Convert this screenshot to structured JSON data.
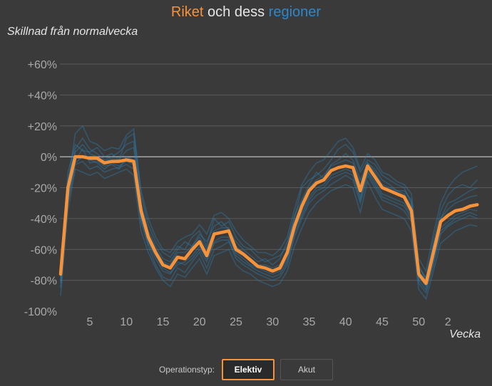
{
  "title": {
    "part1": "Riket",
    "part2": " och dess ",
    "part3": "regioner"
  },
  "chart_data": {
    "type": "line",
    "ylabel": "Skillnad från normalvecka",
    "xlabel": "Vecka",
    "x_ticks": [
      "5",
      "10",
      "15",
      "20",
      "25",
      "30",
      "35",
      "40",
      "45",
      "50",
      "2"
    ],
    "y_ticks": [
      "+60%",
      "+40%",
      "+20%",
      "0%",
      "-20%",
      "-40%",
      "-60%",
      "-80%",
      "-100%"
    ],
    "ylim": [
      -100,
      70
    ],
    "grid": true,
    "x_index_note": "x values are week positions counted from week 1 (index 53 = week 1 of next year)",
    "series": [
      {
        "name": "Riket",
        "x": [
          1,
          2,
          3,
          4,
          5,
          6,
          7,
          8,
          9,
          10,
          11,
          12,
          13,
          14,
          15,
          16,
          17,
          18,
          19,
          20,
          21,
          22,
          23,
          24,
          25,
          26,
          27,
          28,
          29,
          30,
          31,
          32,
          33,
          34,
          35,
          36,
          37,
          38,
          39,
          40,
          41,
          42,
          43,
          44,
          45,
          46,
          47,
          48,
          49,
          50,
          51,
          52,
          53,
          54,
          55,
          56,
          57,
          58
        ],
        "values": [
          -76,
          -20,
          0,
          0,
          -1,
          -1,
          -4,
          -3,
          -3,
          -2,
          -3,
          -35,
          -52,
          -62,
          -70,
          -72,
          -65,
          -66,
          -60,
          -55,
          -64,
          -50,
          -49,
          -48,
          -60,
          -63,
          -67,
          -71,
          -72,
          -74,
          -72,
          -62,
          -45,
          -32,
          -22,
          -17,
          -15,
          -9,
          -7,
          -6,
          -7,
          -22,
          -6,
          -13,
          -20,
          -22,
          -24,
          -26,
          -35,
          -76,
          -82,
          -62,
          -42,
          -38,
          -35,
          -34,
          -32,
          -31
        ]
      },
      {
        "name": "",
        "x": [
          1,
          2,
          3,
          4,
          5,
          6,
          7,
          8,
          9,
          10,
          11,
          12,
          13,
          14,
          15,
          16,
          17,
          18,
          19,
          20,
          21,
          22,
          23,
          24,
          25,
          26,
          27,
          28,
          29,
          30,
          31,
          32,
          33,
          34,
          35,
          36,
          37,
          38,
          39,
          40,
          41,
          42,
          43,
          44,
          45,
          46,
          47,
          48,
          49,
          50,
          51,
          52,
          53,
          54,
          55,
          56,
          57,
          58
        ],
        "values": [
          -80,
          -15,
          5,
          12,
          5,
          2,
          -2,
          0,
          3,
          8,
          10,
          -30,
          -48,
          -58,
          -66,
          -68,
          -60,
          -55,
          -58,
          -50,
          -55,
          -45,
          -42,
          -47,
          -55,
          -60,
          -64,
          -68,
          -66,
          -70,
          -66,
          -55,
          -40,
          -20,
          -15,
          -12,
          -8,
          -2,
          5,
          8,
          3,
          -10,
          -2,
          -5,
          -12,
          -15,
          -18,
          -20,
          -30,
          -70,
          -80,
          -55,
          -35,
          -25,
          -20,
          -18,
          -20,
          -15
        ]
      },
      {
        "name": "",
        "x": [
          1,
          2,
          3,
          4,
          5,
          6,
          7,
          8,
          9,
          10,
          11,
          12,
          13,
          14,
          15,
          16,
          17,
          18,
          19,
          20,
          21,
          22,
          23,
          24,
          25,
          26,
          27,
          28,
          29,
          30,
          31,
          32,
          33,
          34,
          35,
          36,
          37,
          38,
          39,
          40,
          41,
          42,
          43,
          44,
          45,
          46,
          47,
          48,
          49,
          50,
          51,
          52,
          53,
          54,
          55,
          56,
          57,
          58
        ],
        "values": [
          -85,
          -30,
          -5,
          -3,
          -8,
          -6,
          -10,
          -8,
          -7,
          -5,
          -8,
          -42,
          -58,
          -70,
          -78,
          -80,
          -72,
          -75,
          -68,
          -62,
          -72,
          -60,
          -58,
          -55,
          -66,
          -70,
          -73,
          -76,
          -78,
          -80,
          -78,
          -70,
          -52,
          -40,
          -30,
          -25,
          -22,
          -18,
          -15,
          -12,
          -15,
          -30,
          -12,
          -20,
          -28,
          -30,
          -32,
          -35,
          -42,
          -82,
          -88,
          -70,
          -50,
          -45,
          -42,
          -40,
          -38,
          -40
        ]
      },
      {
        "name": "",
        "x": [
          1,
          2,
          3,
          4,
          5,
          6,
          7,
          8,
          9,
          10,
          11,
          12,
          13,
          14,
          15,
          16,
          17,
          18,
          19,
          20,
          21,
          22,
          23,
          24,
          25,
          26,
          27,
          28,
          29,
          30,
          31,
          32,
          33,
          34,
          35,
          36,
          37,
          38,
          39,
          40,
          41,
          42,
          43,
          44,
          45,
          46,
          47,
          48,
          49,
          50,
          51,
          52,
          53,
          54,
          55,
          56,
          57,
          58
        ],
        "values": [
          -70,
          -10,
          8,
          4,
          3,
          6,
          0,
          2,
          -2,
          12,
          15,
          -25,
          -44,
          -55,
          -62,
          -65,
          -58,
          -60,
          -52,
          -48,
          -58,
          -40,
          -45,
          -42,
          -52,
          -58,
          -60,
          -65,
          -68,
          -66,
          -64,
          -58,
          -38,
          -28,
          -18,
          -10,
          -14,
          -5,
          -2,
          2,
          -2,
          -15,
          -4,
          -8,
          -15,
          -18,
          -22,
          -22,
          -28,
          -72,
          -78,
          -58,
          -40,
          -30,
          -28,
          -25,
          -22,
          -20
        ]
      },
      {
        "name": "",
        "x": [
          1,
          2,
          3,
          4,
          5,
          6,
          7,
          8,
          9,
          10,
          11,
          12,
          13,
          14,
          15,
          16,
          17,
          18,
          19,
          20,
          21,
          22,
          23,
          24,
          25,
          26,
          27,
          28,
          29,
          30,
          31,
          32,
          33,
          34,
          35,
          36,
          37,
          38,
          39,
          40,
          41,
          42,
          43,
          44,
          45,
          46,
          47,
          48,
          49,
          50,
          51,
          52,
          53,
          54,
          55,
          56,
          57,
          58
        ],
        "values": [
          -78,
          -25,
          -2,
          5,
          -4,
          -3,
          -6,
          -5,
          -8,
          0,
          -2,
          -38,
          -55,
          -64,
          -72,
          -75,
          -70,
          -68,
          -64,
          -58,
          -66,
          -55,
          -52,
          -52,
          -62,
          -66,
          -70,
          -72,
          -74,
          -76,
          -74,
          -66,
          -48,
          -36,
          -26,
          -20,
          -18,
          -12,
          -10,
          -8,
          -10,
          -26,
          -9,
          -16,
          -24,
          -26,
          -28,
          -30,
          -38,
          -78,
          -84,
          -66,
          -46,
          -42,
          -38,
          -36,
          -34,
          -35
        ]
      },
      {
        "name": "",
        "x": [
          1,
          2,
          3,
          4,
          5,
          6,
          7,
          8,
          9,
          10,
          11,
          12,
          13,
          14,
          15,
          16,
          17,
          18,
          19,
          20,
          21,
          22,
          23,
          24,
          25,
          26,
          27,
          28,
          29,
          30,
          31,
          32,
          33,
          34,
          35,
          36,
          37,
          38,
          39,
          40,
          41,
          42,
          43,
          44,
          45,
          46,
          47,
          48,
          49,
          50,
          51,
          52,
          53,
          54,
          55,
          56,
          57,
          58
        ],
        "values": [
          -90,
          -35,
          -8,
          -10,
          -12,
          -10,
          -14,
          -12,
          -10,
          -8,
          -12,
          -48,
          -62,
          -72,
          -80,
          -84,
          -76,
          -78,
          -72,
          -66,
          -76,
          -64,
          -62,
          -60,
          -70,
          -74,
          -76,
          -80,
          -82,
          -84,
          -82,
          -74,
          -58,
          -46,
          -36,
          -30,
          -26,
          -22,
          -20,
          -18,
          -20,
          -36,
          -16,
          -26,
          -34,
          -36,
          -38,
          -40,
          -48,
          -86,
          -92,
          -74,
          -56,
          -52,
          -48,
          -46,
          -44,
          -45
        ]
      },
      {
        "name": "",
        "x": [
          1,
          2,
          3,
          4,
          5,
          6,
          7,
          8,
          9,
          10,
          11,
          12,
          13,
          14,
          15,
          16,
          17,
          18,
          19,
          20,
          21,
          22,
          23,
          24,
          25,
          26,
          27,
          28,
          29,
          30,
          31,
          32,
          33,
          34,
          35,
          36,
          37,
          38,
          39,
          40,
          41,
          42,
          43,
          44,
          45,
          46,
          47,
          48,
          49,
          50,
          51,
          52,
          53,
          54,
          55,
          56,
          57,
          58
        ],
        "values": [
          -72,
          -18,
          15,
          20,
          10,
          8,
          4,
          6,
          5,
          14,
          18,
          -22,
          -40,
          -52,
          -60,
          -62,
          -55,
          -52,
          -50,
          -44,
          -50,
          -38,
          -36,
          -40,
          -48,
          -54,
          -58,
          -62,
          -62,
          -64,
          -60,
          -52,
          -34,
          -18,
          -10,
          -4,
          -2,
          4,
          10,
          12,
          6,
          -8,
          2,
          -2,
          -10,
          -12,
          -16,
          -18,
          -24,
          -66,
          -74,
          -50,
          -30,
          -20,
          -14,
          -10,
          -8,
          -6
        ]
      },
      {
        "name": "",
        "x": [
          1,
          2,
          3,
          4,
          5,
          6,
          7,
          8,
          9,
          10,
          11,
          12,
          13,
          14,
          15,
          16,
          17,
          18,
          19,
          20,
          21,
          22,
          23,
          24,
          25,
          26,
          27,
          28,
          29,
          30,
          31,
          32,
          33,
          34,
          35,
          36,
          37,
          38,
          39,
          40,
          41,
          42,
          43,
          44,
          45,
          46,
          47,
          48,
          49,
          50,
          51,
          52,
          53,
          54,
          55,
          56,
          57,
          58
        ],
        "values": [
          -82,
          -28,
          -4,
          0,
          -2,
          -4,
          -8,
          -4,
          -6,
          -3,
          -5,
          -40,
          -56,
          -66,
          -74,
          -76,
          -68,
          -70,
          -66,
          -60,
          -68,
          -56,
          -54,
          -54,
          -64,
          -68,
          -71,
          -74,
          -76,
          -78,
          -76,
          -68,
          -50,
          -38,
          -28,
          -22,
          -20,
          -14,
          -12,
          -10,
          -12,
          -28,
          -10,
          -18,
          -26,
          -28,
          -30,
          -32,
          -40,
          -80,
          -86,
          -68,
          -48,
          -44,
          -40,
          -38,
          -36,
          -38
        ]
      },
      {
        "name": "",
        "x": [
          1,
          2,
          3,
          4,
          5,
          6,
          7,
          8,
          9,
          10,
          11,
          12,
          13,
          14,
          15,
          16,
          17,
          18,
          19,
          20,
          21,
          22,
          23,
          24,
          25,
          26,
          27,
          28,
          29,
          30,
          31,
          32,
          33,
          34,
          35,
          36,
          37,
          38,
          39,
          40,
          41,
          42,
          43,
          44,
          45,
          46,
          47,
          48,
          49,
          50,
          51,
          52,
          53,
          54,
          55,
          56,
          57,
          58
        ],
        "values": [
          -75,
          -22,
          3,
          8,
          2,
          0,
          -3,
          -1,
          -2,
          4,
          6,
          -32,
          -50,
          -60,
          -68,
          -70,
          -62,
          -62,
          -58,
          -52,
          -60,
          -48,
          -46,
          -46,
          -58,
          -62,
          -66,
          -70,
          -70,
          -72,
          -70,
          -62,
          -44,
          -30,
          -20,
          -15,
          -12,
          -6,
          -4,
          -2,
          -4,
          -18,
          -4,
          -10,
          -18,
          -20,
          -22,
          -24,
          -32,
          -74,
          -80,
          -60,
          -40,
          -34,
          -30,
          -28,
          -26,
          -25
        ]
      }
    ]
  },
  "controls": {
    "label": "Operationstyp:",
    "options": [
      "Elektiv",
      "Akut"
    ],
    "selected": "Elektiv"
  }
}
